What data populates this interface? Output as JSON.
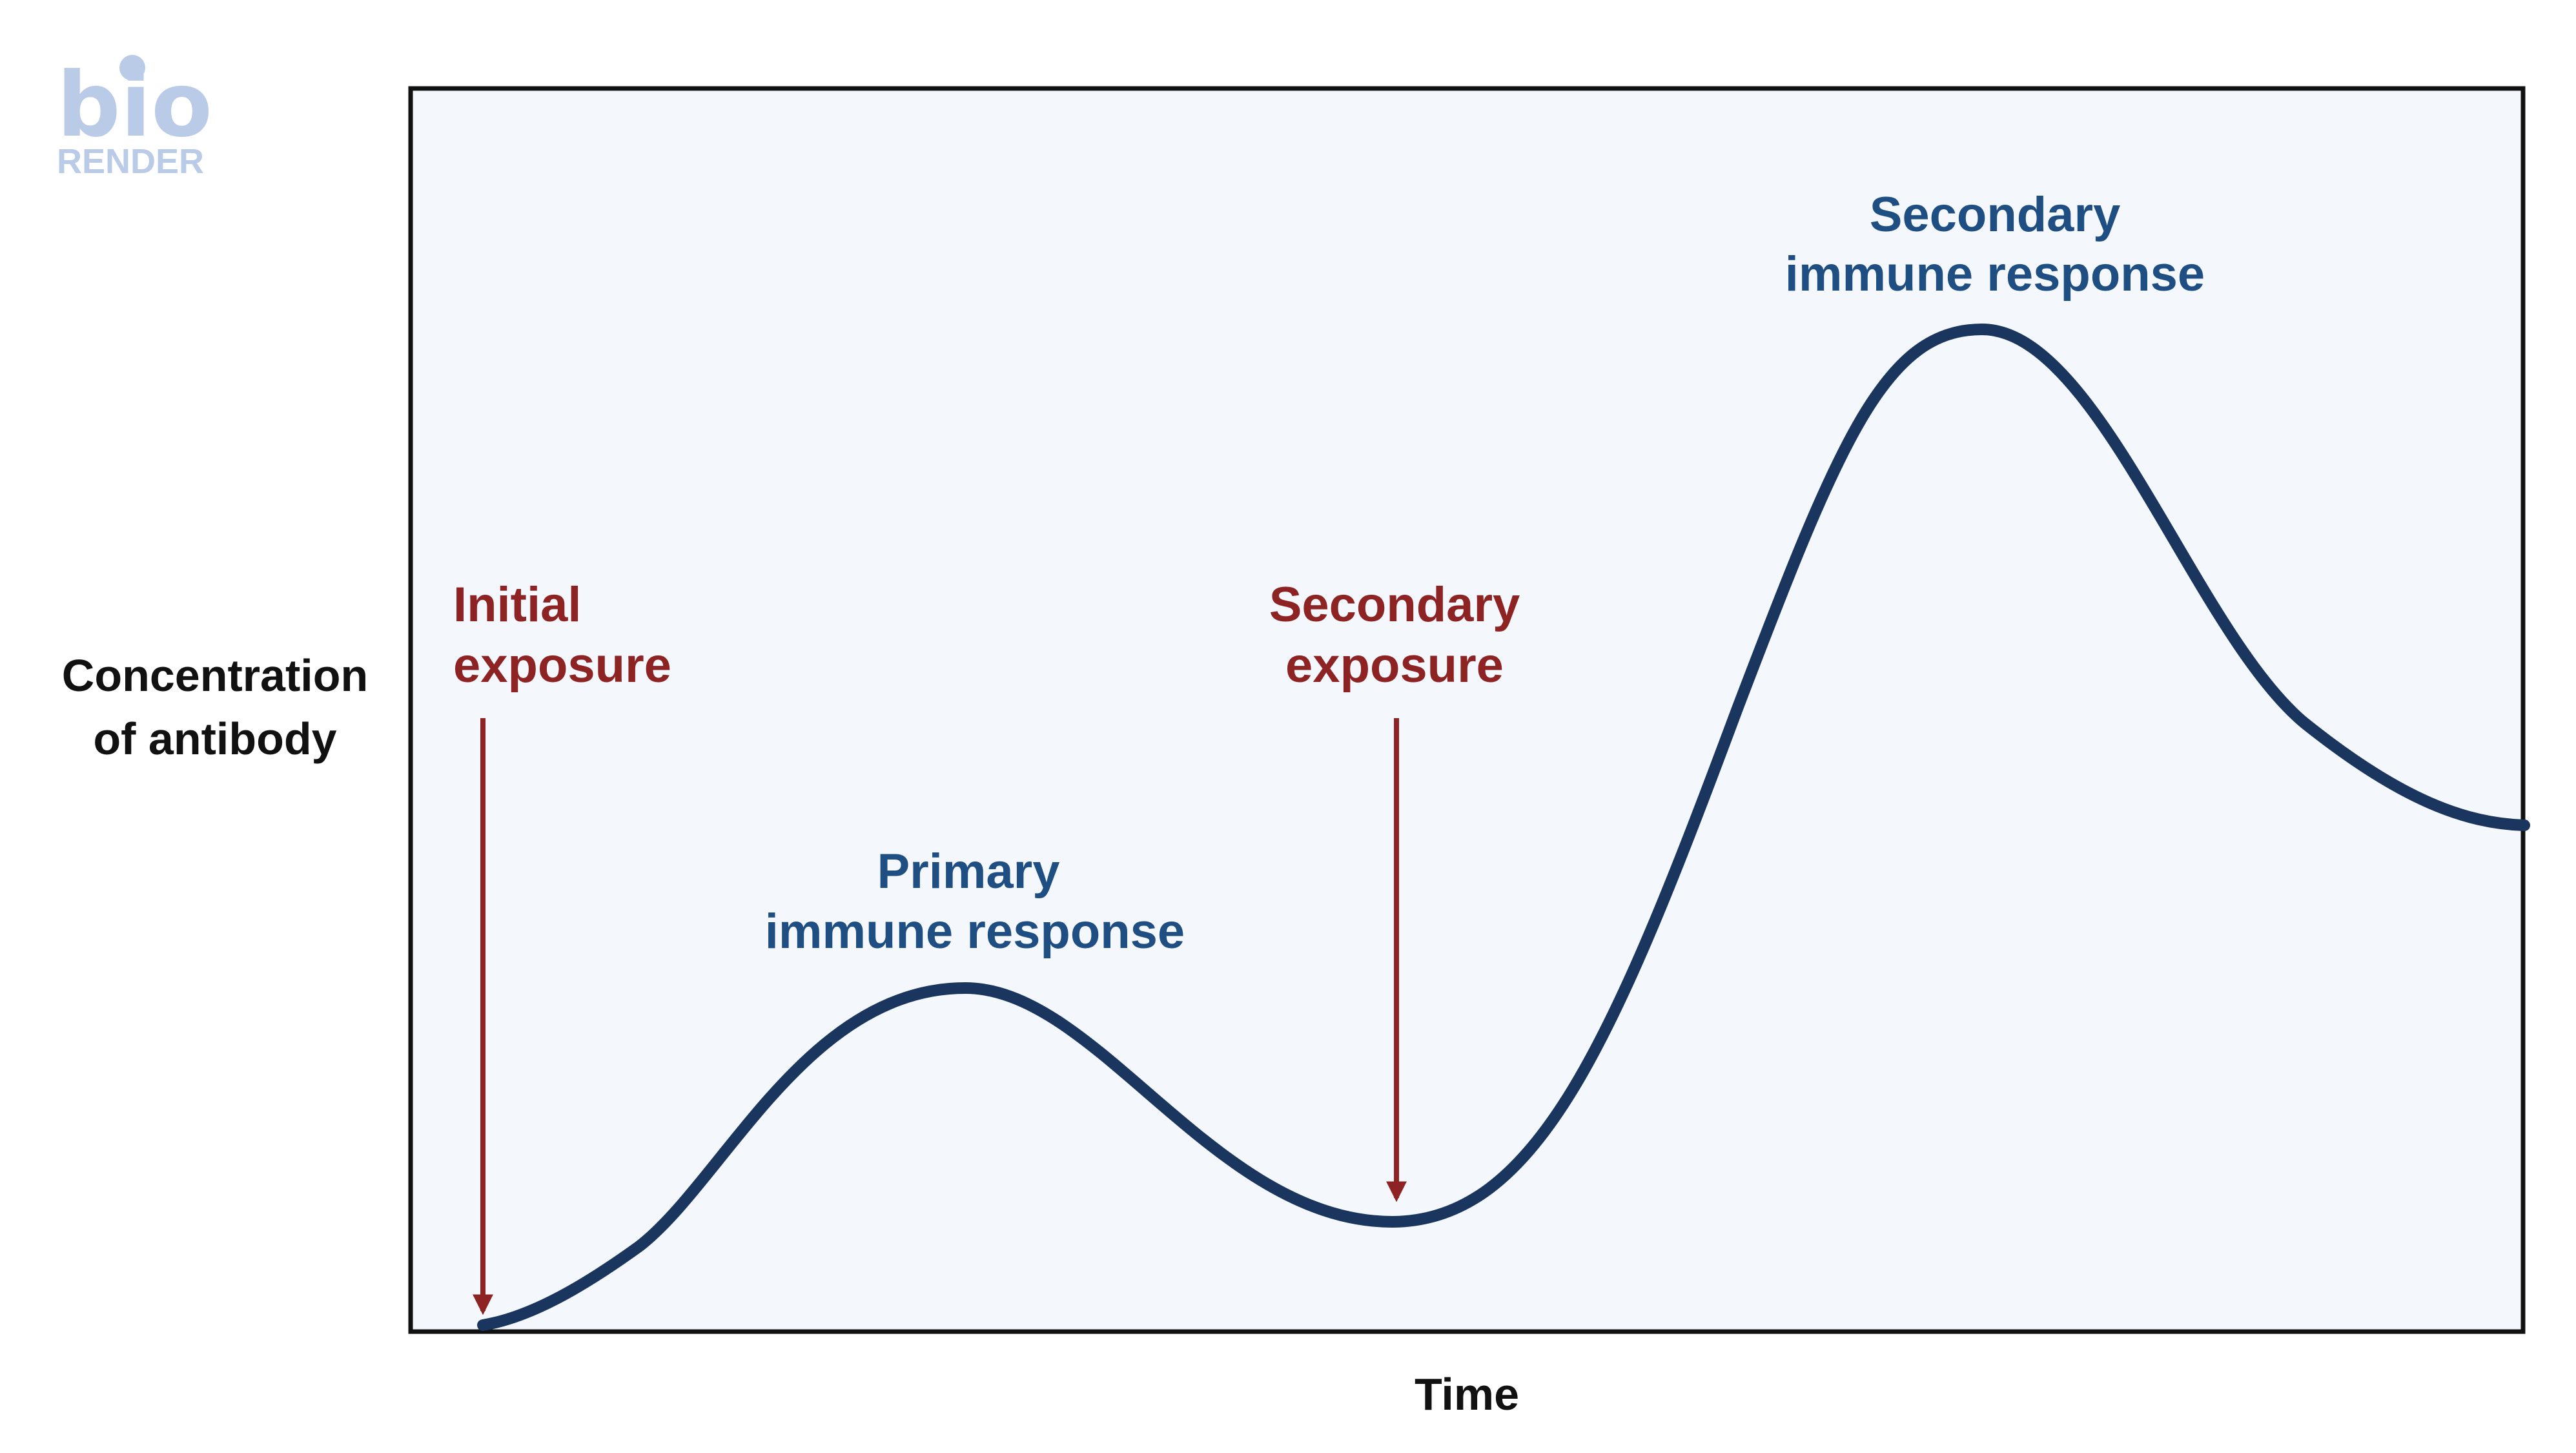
{
  "logo": {
    "top_text": "bio",
    "bottom_text": "RENDER",
    "color": "#b9cbe6"
  },
  "axes": {
    "ylabel_line1": "Concentration",
    "ylabel_line2": "of antibody",
    "xlabel": "Time"
  },
  "annotations": {
    "initial_exposure": {
      "line1": "Initial",
      "line2": "exposure"
    },
    "secondary_exposure": {
      "line1": "Secondary",
      "line2": "exposure"
    },
    "primary_response": {
      "line1": "Primary",
      "line2": "immune response"
    },
    "secondary_response": {
      "line1": "Secondary",
      "line2": "immune response"
    }
  },
  "colors": {
    "plot_background": "#f4f8fd",
    "frame": "#111111",
    "curve": "#1a365e",
    "exposure": "#8e2323",
    "response_label": "#1f4f82"
  }
}
